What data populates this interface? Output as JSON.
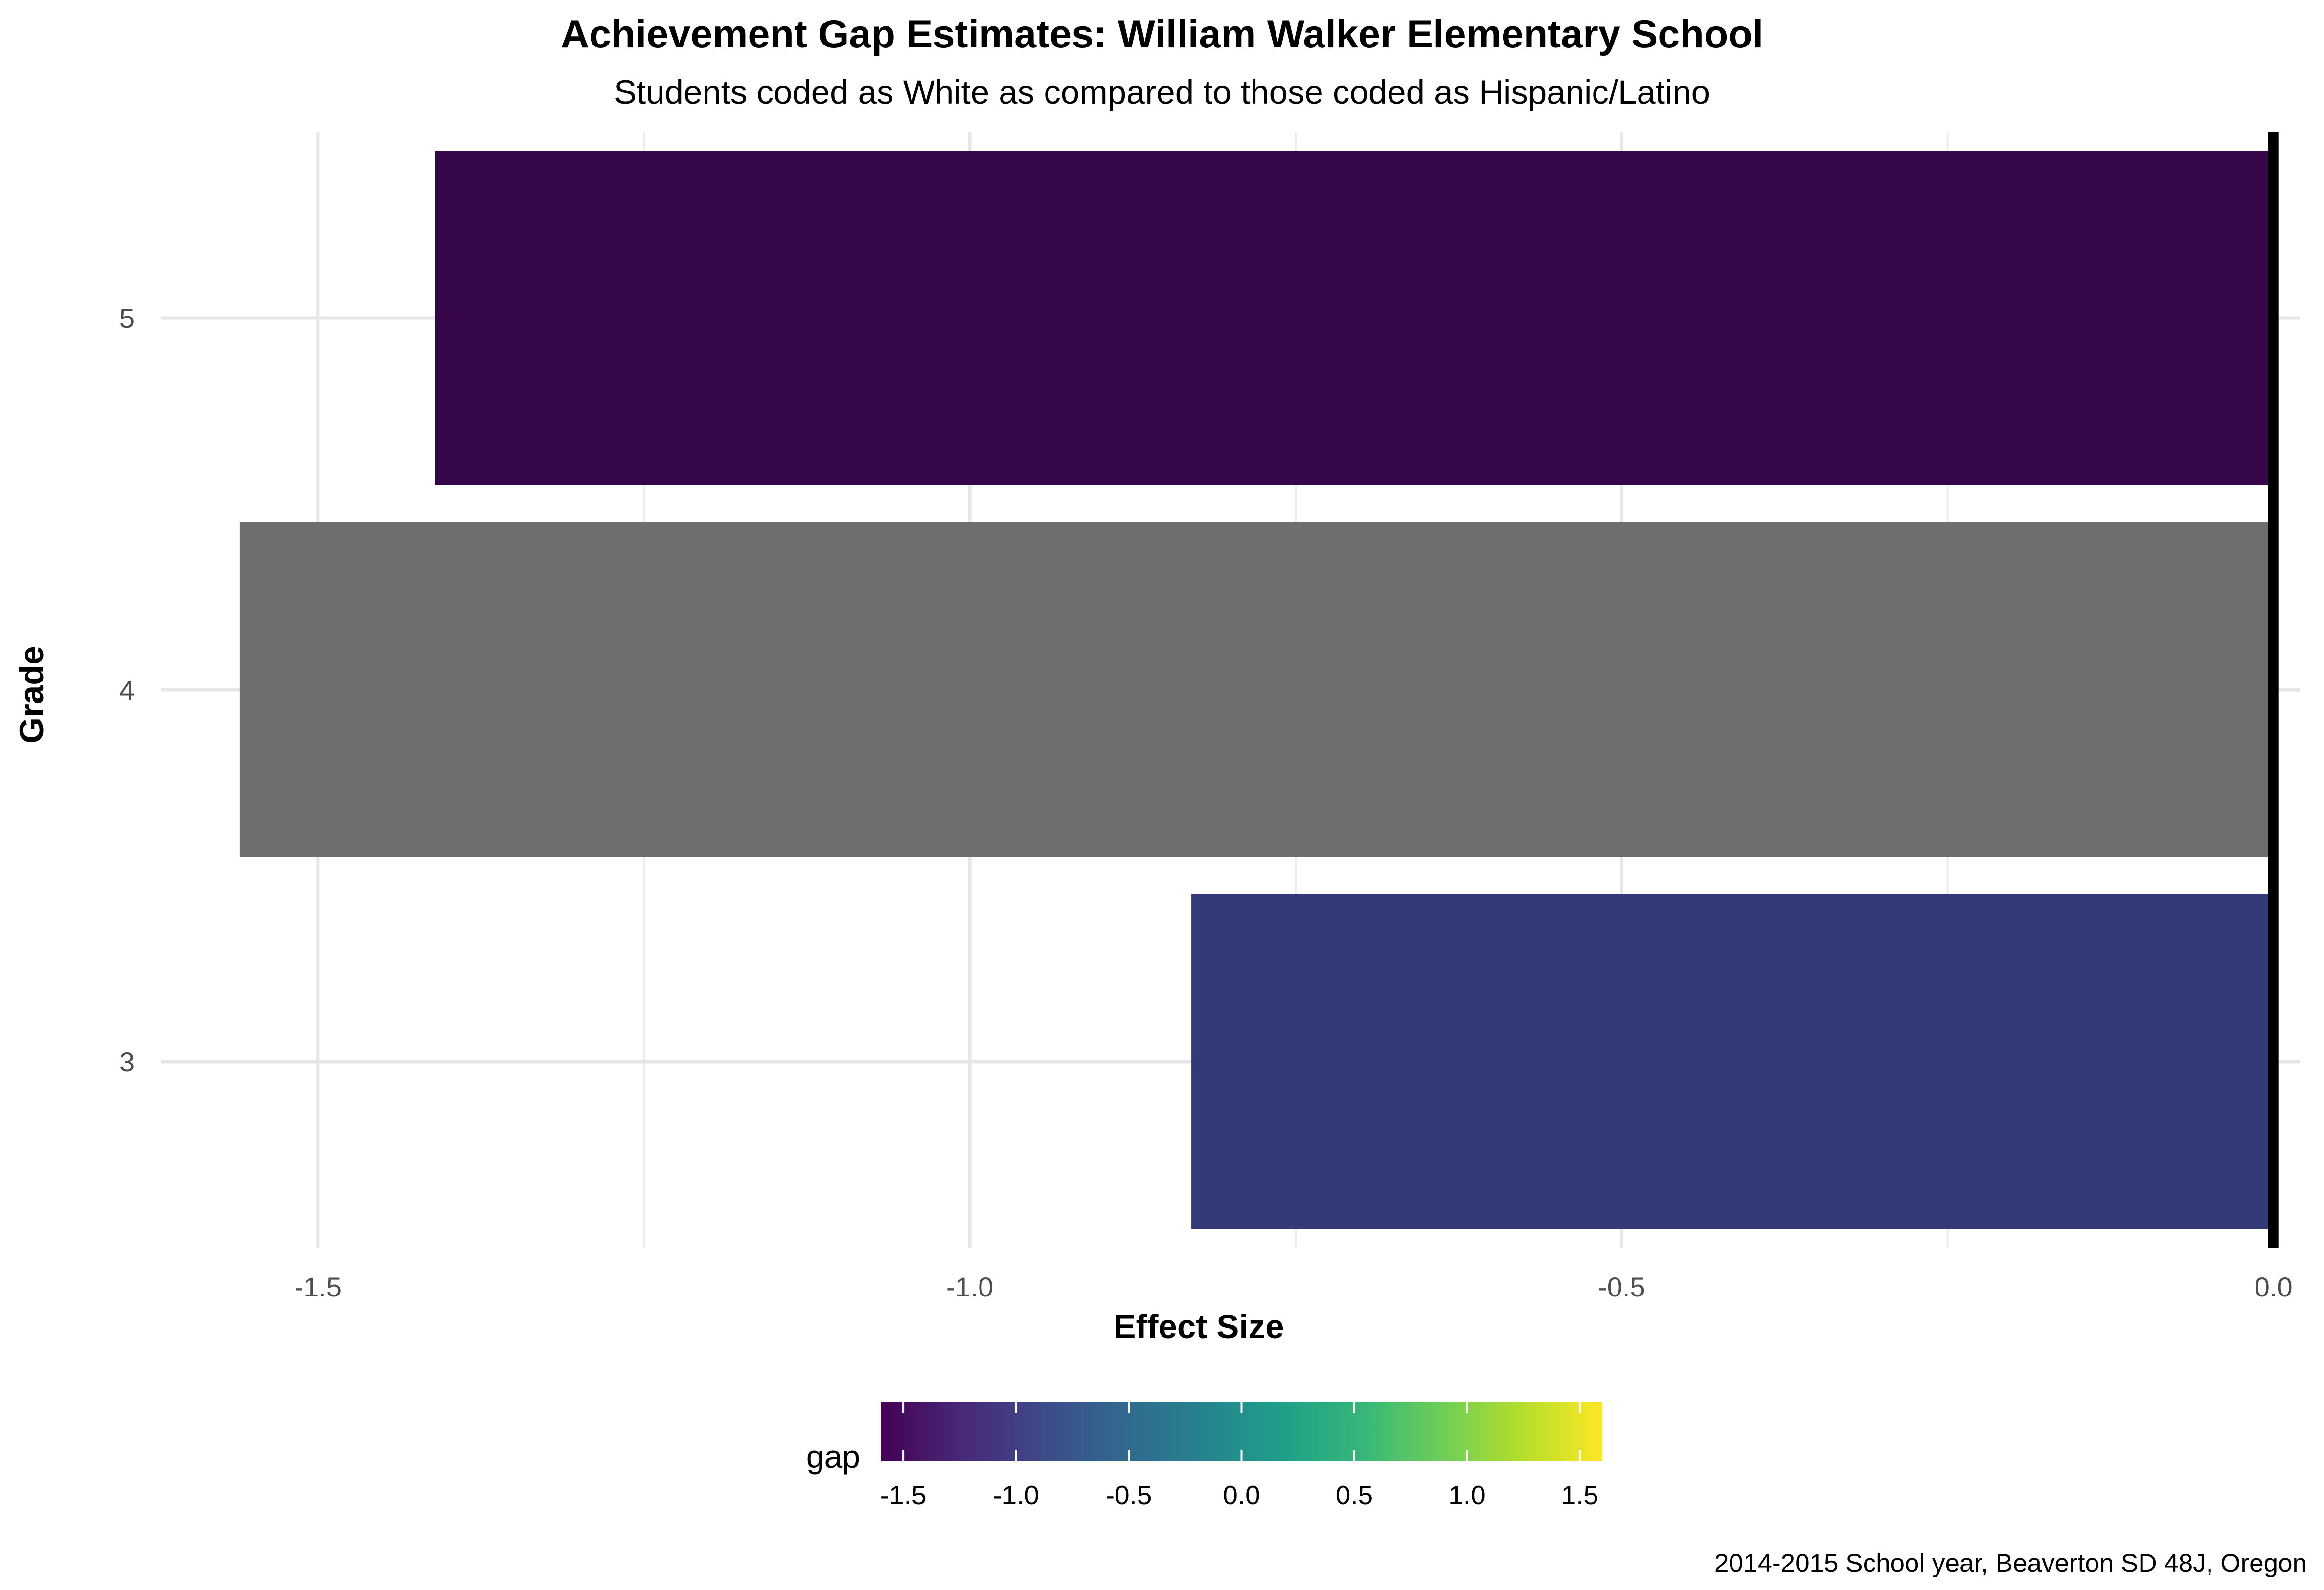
{
  "chart_data": {
    "type": "bar",
    "orientation": "horizontal",
    "title": "Achievement Gap Estimates: William Walker Elementary School",
    "subtitle": "Students coded as White as compared to those coded as Hispanic/Latino",
    "xlabel": "Effect Size",
    "ylabel": "Grade",
    "caption": "2014-2015 School year, Beaverton SD 48J, Oregon",
    "categories": [
      "3",
      "4",
      "5"
    ],
    "values": [
      -0.83,
      -1.56,
      -1.41
    ],
    "bar_colors": [
      "#343a78",
      "#6e6e6e",
      "#35064a"
    ],
    "xlim": [
      -1.62,
      0.02
    ],
    "x_ticks": [
      "-1.5",
      "-1.0",
      "-0.5",
      "0.0"
    ],
    "x_tick_values": [
      -1.5,
      -1.0,
      -0.5,
      0.0
    ],
    "reference_line_x": 0,
    "grid": true,
    "legend": {
      "title": "gap",
      "position": "bottom",
      "type": "colorbar",
      "range": [
        -1.6,
        1.6
      ],
      "ticks": [
        "-1.5",
        "-1.0",
        "-0.5",
        "0.0",
        "0.5",
        "1.0",
        "1.5"
      ],
      "tick_values": [
        -1.5,
        -1.0,
        -0.5,
        0.0,
        0.5,
        1.0,
        1.5
      ],
      "colors": [
        "#440154",
        "#482878",
        "#3e4989",
        "#31688e",
        "#26828e",
        "#1f9e89",
        "#35b779",
        "#6ece58",
        "#b5de2b",
        "#fde725"
      ]
    }
  }
}
